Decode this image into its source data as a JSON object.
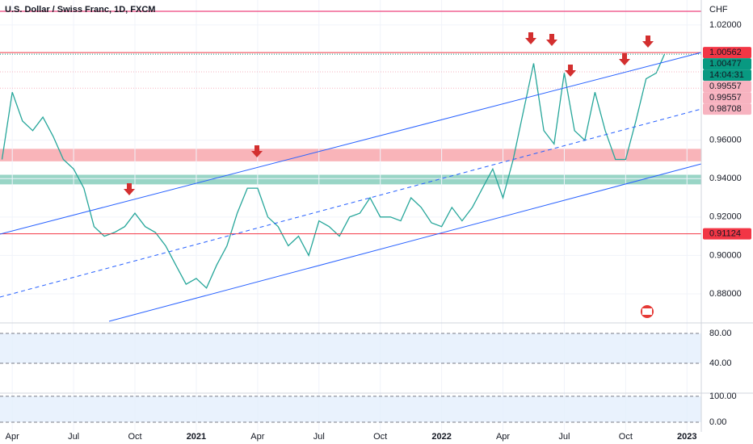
{
  "chart_data": [
    {
      "type": "line",
      "title": "U.S. Dollar / Swiss Franc, 1D, FXCM",
      "currency": "CHF",
      "color": "#26a69a",
      "x": [
        -0.5,
        0,
        0.5,
        1,
        1.5,
        2,
        2.5,
        3,
        3.5,
        4,
        4.5,
        5,
        5.5,
        6,
        6.5,
        7,
        7.5,
        8,
        8.5,
        9,
        9.5,
        10,
        10.5,
        11,
        11.5,
        12,
        12.5,
        13,
        13.5,
        14,
        14.5,
        15,
        15.5,
        16,
        16.5,
        17,
        17.5,
        18,
        18.5,
        19,
        19.5,
        20,
        20.5,
        21,
        21.5,
        22,
        22.5,
        23,
        23.5,
        24,
        24.5,
        25,
        25.5,
        26,
        26.5,
        27,
        27.5,
        28,
        28.5,
        29,
        29.5,
        30,
        30.5,
        31,
        31.5,
        31.9
      ],
      "values": [
        0.95,
        0.985,
        0.97,
        0.965,
        0.972,
        0.962,
        0.95,
        0.945,
        0.935,
        0.915,
        0.91,
        0.912,
        0.915,
        0.922,
        0.915,
        0.912,
        0.905,
        0.895,
        0.885,
        0.888,
        0.883,
        0.895,
        0.905,
        0.922,
        0.935,
        0.935,
        0.92,
        0.915,
        0.905,
        0.91,
        0.9,
        0.918,
        0.915,
        0.91,
        0.92,
        0.922,
        0.93,
        0.92,
        0.92,
        0.918,
        0.93,
        0.925,
        0.917,
        0.915,
        0.925,
        0.918,
        0.925,
        0.935,
        0.945,
        0.93,
        0.95,
        0.975,
        1.0,
        0.965,
        0.958,
        0.995,
        0.965,
        0.96,
        0.985,
        0.965,
        0.95,
        0.95,
        0.97,
        0.992,
        0.995,
        1.00477
      ],
      "xlim": [
        -0.6,
        33.7
      ],
      "xticks": [
        {
          "value": 0,
          "label": "Apr"
        },
        {
          "value": 3,
          "label": "Jul"
        },
        {
          "value": 6,
          "label": "Oct"
        },
        {
          "value": 9,
          "label": "2021"
        },
        {
          "value": 12,
          "label": "Apr"
        },
        {
          "value": 15,
          "label": "Jul"
        },
        {
          "value": 18,
          "label": "Oct"
        },
        {
          "value": 21,
          "label": "2022"
        },
        {
          "value": 24,
          "label": "Apr"
        },
        {
          "value": 27,
          "label": "Jul"
        },
        {
          "value": 30,
          "label": "Oct"
        },
        {
          "value": 33,
          "label": "2023"
        }
      ],
      "ylim": [
        0.8657,
        1.033
      ],
      "yticks": [
        {
          "value": 0.88,
          "label": "0.88000"
        },
        {
          "value": 0.9,
          "label": "0.90000"
        },
        {
          "value": 0.92,
          "label": "0.92000"
        },
        {
          "value": 0.94,
          "label": "0.94000"
        },
        {
          "value": 0.96,
          "label": "0.96000"
        },
        {
          "value": 1.02,
          "label": "1.02000"
        }
      ],
      "price_labels": [
        {
          "value": 1.00562,
          "color": "#f23645"
        },
        {
          "value": 1.00477,
          "color": "#089981",
          "time": "14:04:31"
        },
        {
          "value": 0.99557,
          "color": "#f7b3c0"
        },
        {
          "value": 0.99557,
          "color": "#f7b3c0"
        },
        {
          "value": 0.98708,
          "color": "#f7b3c0"
        },
        {
          "value": 0.91124,
          "color": "#f23645"
        }
      ],
      "zones": [
        {
          "from": 0.949,
          "to": 0.9555,
          "color": "#f7a1a8"
        },
        {
          "from": 0.937,
          "to": 0.942,
          "color": "#7fcbb8"
        }
      ]
    },
    {
      "type": "oscillator",
      "ylim": [
        1.1,
        91.9
      ],
      "yticks": [
        {
          "value": 80,
          "label": "80.00"
        },
        {
          "value": 40,
          "label": "40.00"
        }
      ]
    },
    {
      "type": "oscillator",
      "ylim": [
        -37.5,
        109
      ],
      "yticks": [
        {
          "value": 100,
          "label": "100.00"
        },
        {
          "value": 0,
          "label": "0.00"
        }
      ]
    }
  ]
}
